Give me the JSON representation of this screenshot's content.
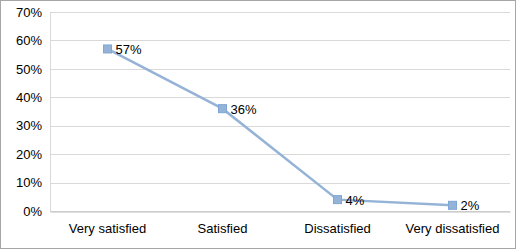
{
  "chart_data": {
    "type": "line",
    "categories": [
      "Very satisfied",
      "Satisfied",
      "Dissatisfied",
      "Very dissatisfied"
    ],
    "values": [
      57,
      36,
      4,
      2
    ],
    "value_labels": [
      "57%",
      "36%",
      "4%",
      "2%"
    ],
    "color": "#95b3d7",
    "marker": "square",
    "data_labels": true,
    "grid": true,
    "ylim": [
      0,
      70
    ],
    "yticks": [
      {
        "value": 0,
        "label": "0%"
      },
      {
        "value": 10,
        "label": "10%"
      },
      {
        "value": 20,
        "label": "20%"
      },
      {
        "value": 30,
        "label": "30%"
      },
      {
        "value": 40,
        "label": "40%"
      },
      {
        "value": 50,
        "label": "50%"
      },
      {
        "value": 60,
        "label": "60%"
      },
      {
        "value": 70,
        "label": "70%"
      }
    ]
  }
}
